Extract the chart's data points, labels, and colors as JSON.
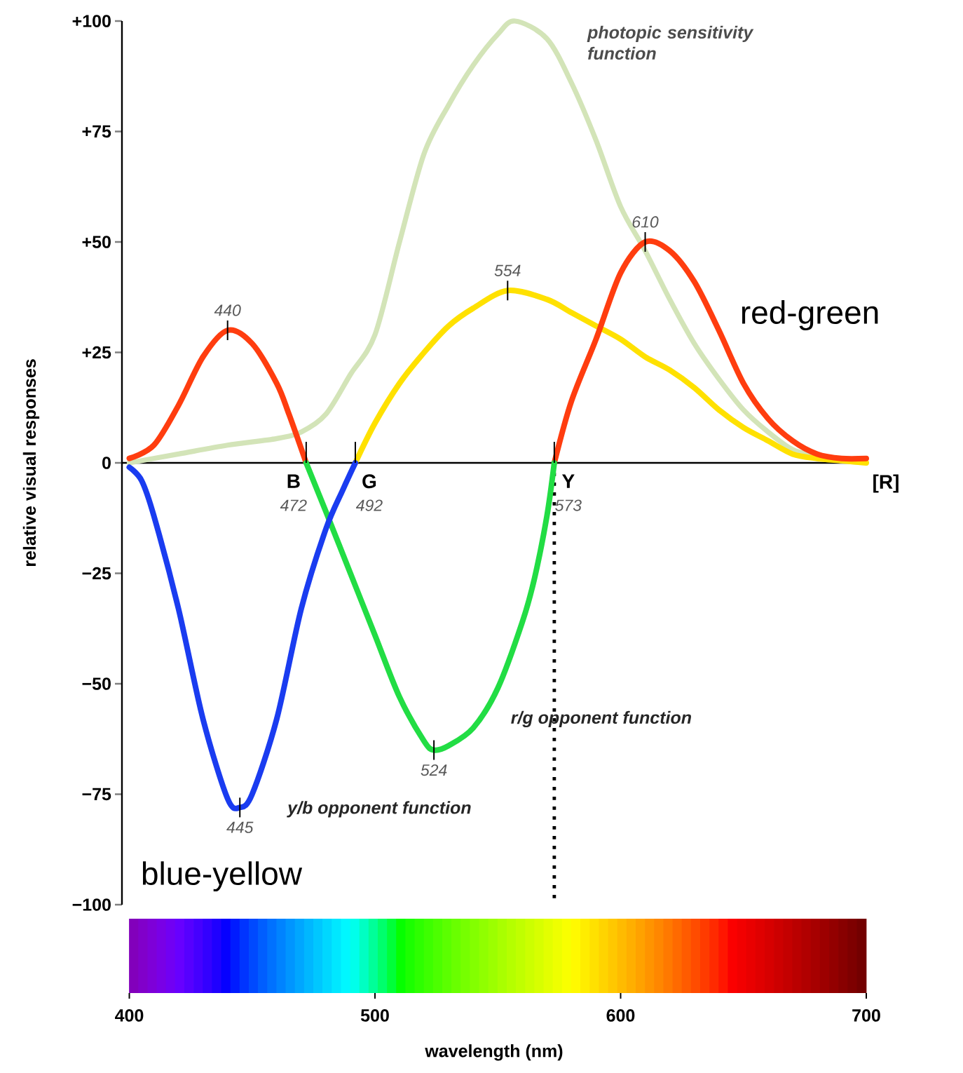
{
  "chart_data": {
    "type": "line",
    "xlabel": "wavelength (nm)",
    "ylabel": "relative visual responses",
    "xlim": [
      397,
      700
    ],
    "ylim": [
      -100,
      100
    ],
    "xticks": [
      400,
      500,
      600,
      700
    ],
    "yticks": [
      {
        "value": -100,
        "label": "−100"
      },
      {
        "value": -75,
        "label": "−75"
      },
      {
        "value": -50,
        "label": "−50"
      },
      {
        "value": -25,
        "label": "−25"
      },
      0,
      {
        "value": 25,
        "label": "+25"
      },
      {
        "value": 50,
        "label": "+50"
      },
      {
        "value": 75,
        "label": "+75"
      },
      {
        "value": 100,
        "label": "+100"
      }
    ],
    "series": [
      {
        "name": "photopic sensitivity function",
        "color": "#d3e4b8",
        "x": [
          400,
          420,
          440,
          460,
          470,
          480,
          490,
          500,
          510,
          520,
          530,
          540,
          550,
          557,
          570,
          580,
          590,
          600,
          610,
          620,
          630,
          640,
          650,
          660,
          670,
          680,
          690,
          700
        ],
        "values": [
          0,
          2,
          4,
          5.5,
          7,
          11,
          20,
          29,
          50,
          70,
          81,
          90,
          97,
          100,
          96,
          86,
          73,
          58,
          48,
          37,
          27,
          19,
          12,
          7,
          3,
          1.5,
          0.5,
          0
        ]
      },
      {
        "name": "red-green",
        "color": "#ff3d0f",
        "x": [
          400,
          410,
          420,
          430,
          440,
          450,
          460,
          465,
          472,
          524,
          573,
          580,
          590,
          600,
          610,
          620,
          630,
          640,
          650,
          660,
          670,
          680,
          690,
          700
        ],
        "values": [
          1,
          4,
          13,
          24,
          30,
          27,
          18,
          11,
          0,
          null,
          0,
          14,
          28,
          43,
          50,
          48,
          41,
          30,
          18,
          10,
          5,
          2,
          1,
          1
        ]
      },
      {
        "name": "r/g opponent function",
        "color": "#22dd44",
        "x": [
          472,
          480,
          490,
          500,
          510,
          520,
          524,
          530,
          540,
          550,
          560,
          565,
          570,
          573
        ],
        "values": [
          0,
          -11,
          -25,
          -39,
          -53,
          -63,
          -65,
          -64,
          -60,
          -51,
          -36,
          -26,
          -12,
          0
        ]
      },
      {
        "name": "y/b opponent function",
        "color": "#1a3cf0",
        "x": [
          400,
          405,
          410,
          420,
          430,
          440,
          445,
          450,
          460,
          470,
          480,
          487,
          492
        ],
        "values": [
          -1,
          -4,
          -12,
          -33,
          -58,
          -76,
          -78,
          -75,
          -58,
          -33,
          -15,
          -6,
          0
        ]
      },
      {
        "color": "#ffe100",
        "x": [
          492,
          500,
          510,
          520,
          530,
          540,
          554,
          570,
          580,
          590,
          600,
          610,
          620,
          630,
          640,
          650,
          660,
          670,
          680,
          690,
          700
        ],
        "values": [
          0,
          9,
          18,
          25,
          31,
          35,
          39,
          37,
          34,
          31,
          28,
          24,
          21,
          17,
          12,
          8,
          5,
          2,
          1,
          0.5,
          0
        ]
      }
    ],
    "ref_lines": [
      {
        "axis": "x",
        "value": 573,
        "line_style": "dotted",
        "color": "#000000"
      }
    ],
    "annotations": [
      {
        "text": "440",
        "x": 440,
        "y": 30
      },
      {
        "text": "554",
        "x": 554,
        "y": 39
      },
      {
        "text": "610",
        "x": 610,
        "y": 50
      },
      {
        "text": "524",
        "x": 524,
        "y": -65
      },
      {
        "text": "445",
        "x": 445,
        "y": -78
      },
      {
        "text": "B",
        "x": 472,
        "y": 0
      },
      {
        "text": "472",
        "x": 472,
        "y": 0
      },
      {
        "text": "G",
        "x": 492,
        "y": 0
      },
      {
        "text": "492",
        "x": 492,
        "y": 0
      },
      {
        "text": "Y",
        "x": 573,
        "y": 0
      },
      {
        "text": "573",
        "x": 573,
        "y": 0
      },
      {
        "text": "[R]",
        "x": 700,
        "y": 0
      },
      "blue-yellow"
    ]
  }
}
